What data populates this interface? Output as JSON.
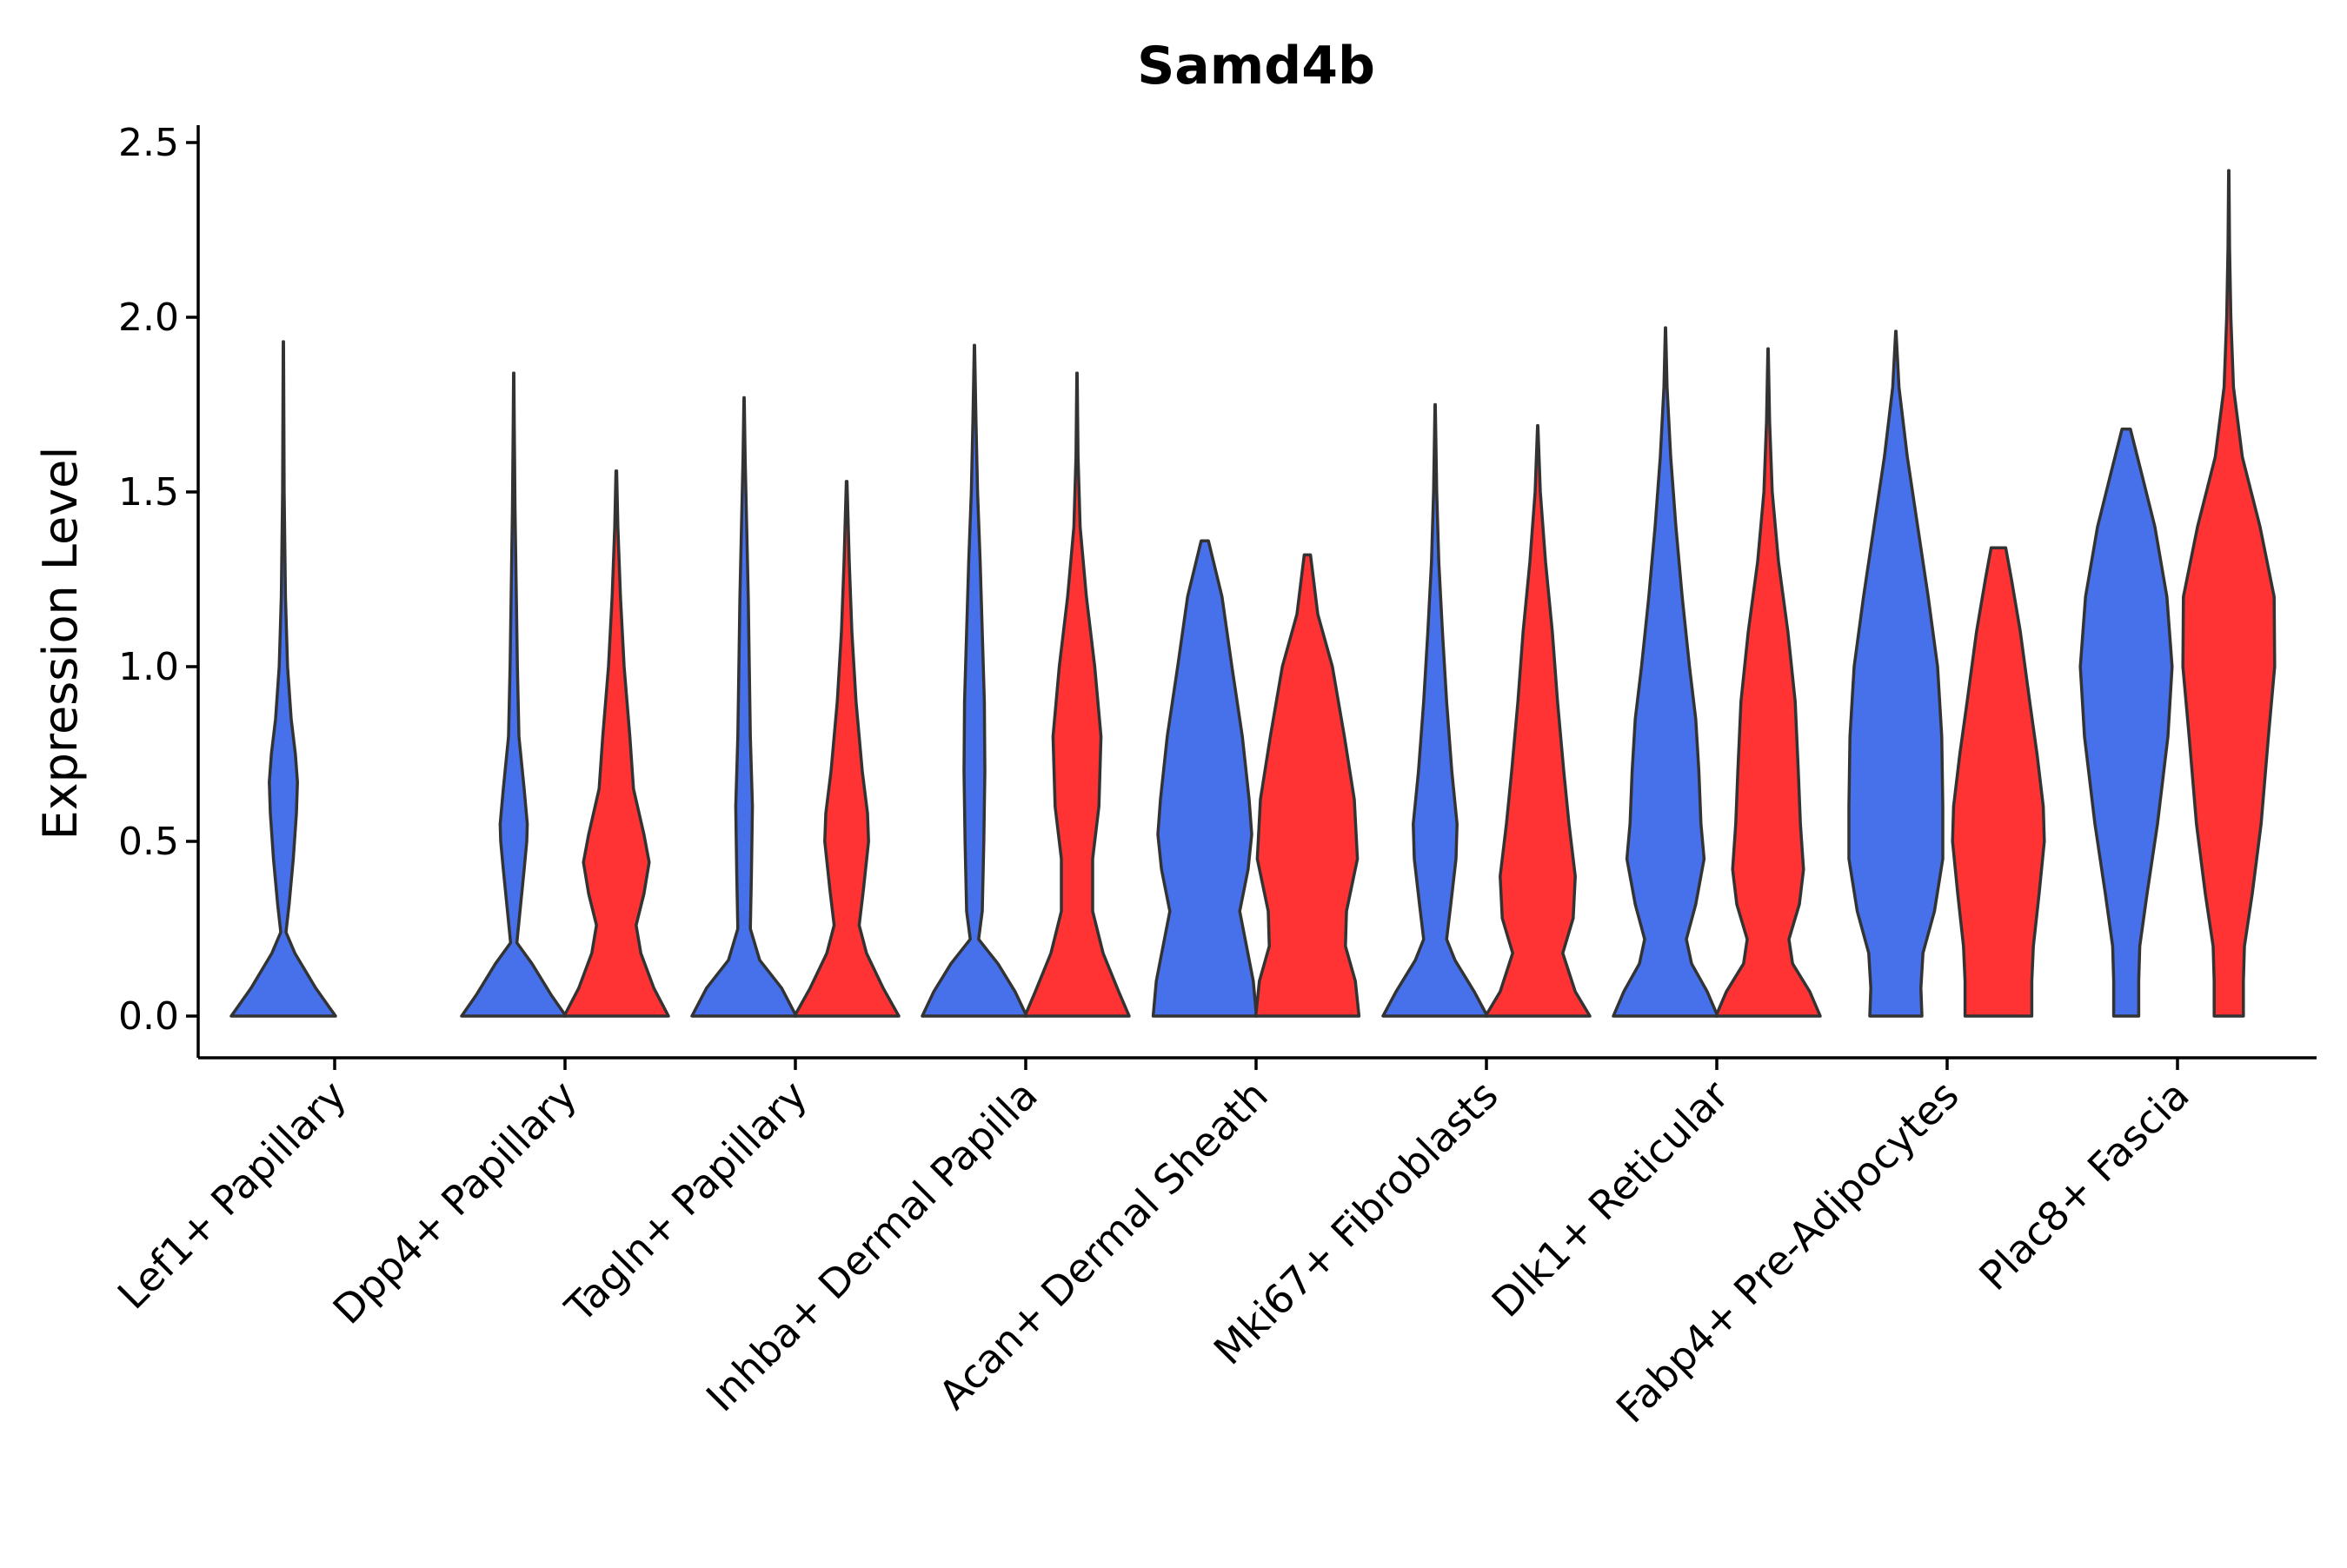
{
  "chart_data": {
    "type": "split-violin",
    "title": "Samd4b",
    "xlabel": "",
    "ylabel": "Expression Level",
    "ylim": [
      -0.12,
      2.55
    ],
    "yticks": [
      0.0,
      0.5,
      1.0,
      1.5,
      2.0,
      2.5
    ],
    "ytick_labels": [
      "0.0",
      "0.5",
      "1.0",
      "1.5",
      "2.0",
      "2.5"
    ],
    "grid": false,
    "legend": "none",
    "categories": [
      "Lef1+ Papillary",
      "Dpp4+ Papillary",
      "Tagln+ Papillary",
      "Inhba+ Dermal Papilla",
      "Acan+ Dermal Sheath",
      "Mki67+ Fibroblasts",
      "Dlk1+ Reticular",
      "Fabp4+ Pre-Adipocytes",
      "Plac8+ Fascia"
    ],
    "groups": [
      {
        "name": "group-blue",
        "color": "#4770EB"
      },
      {
        "name": "group-red",
        "color": "#FF3333"
      }
    ],
    "violins": [
      {
        "category": 0,
        "group": 0,
        "max": 1.93,
        "profile": [
          [
            0.0,
            1.0
          ],
          [
            0.08,
            0.62
          ],
          [
            0.18,
            0.22
          ],
          [
            0.24,
            0.05
          ],
          [
            0.32,
            0.11
          ],
          [
            0.45,
            0.19
          ],
          [
            0.58,
            0.25
          ],
          [
            0.67,
            0.27
          ],
          [
            0.75,
            0.23
          ],
          [
            0.85,
            0.15
          ],
          [
            1.0,
            0.08
          ],
          [
            1.2,
            0.04
          ],
          [
            1.5,
            0.015
          ],
          [
            1.75,
            0.008
          ],
          [
            1.93,
            0.004
          ]
        ]
      },
      {
        "category": 1,
        "group": 0,
        "max": 1.84,
        "profile": [
          [
            0.0,
            1.0
          ],
          [
            0.06,
            0.72
          ],
          [
            0.15,
            0.35
          ],
          [
            0.21,
            0.06
          ],
          [
            0.3,
            0.12
          ],
          [
            0.42,
            0.2
          ],
          [
            0.5,
            0.25
          ],
          [
            0.55,
            0.26
          ],
          [
            0.65,
            0.2
          ],
          [
            0.8,
            0.1
          ],
          [
            1.0,
            0.07
          ],
          [
            1.2,
            0.05
          ],
          [
            1.45,
            0.025
          ],
          [
            1.7,
            0.01
          ],
          [
            1.84,
            0.004
          ]
        ]
      },
      {
        "category": 1,
        "group": 1,
        "max": 1.56,
        "profile": [
          [
            0.0,
            1.0
          ],
          [
            0.08,
            0.72
          ],
          [
            0.18,
            0.47
          ],
          [
            0.26,
            0.38
          ],
          [
            0.35,
            0.53
          ],
          [
            0.44,
            0.63
          ],
          [
            0.52,
            0.53
          ],
          [
            0.65,
            0.33
          ],
          [
            0.8,
            0.26
          ],
          [
            1.0,
            0.15
          ],
          [
            1.2,
            0.08
          ],
          [
            1.4,
            0.03
          ],
          [
            1.56,
            0.006
          ]
        ]
      },
      {
        "category": 2,
        "group": 0,
        "max": 1.77,
        "profile": [
          [
            0.0,
            1.0
          ],
          [
            0.08,
            0.72
          ],
          [
            0.16,
            0.3
          ],
          [
            0.25,
            0.12
          ],
          [
            0.4,
            0.14
          ],
          [
            0.6,
            0.16
          ],
          [
            0.8,
            0.12
          ],
          [
            1.0,
            0.1
          ],
          [
            1.2,
            0.08
          ],
          [
            1.4,
            0.05
          ],
          [
            1.6,
            0.02
          ],
          [
            1.77,
            0.004
          ]
        ]
      },
      {
        "category": 2,
        "group": 1,
        "max": 1.53,
        "profile": [
          [
            0.0,
            1.0
          ],
          [
            0.08,
            0.7
          ],
          [
            0.18,
            0.38
          ],
          [
            0.26,
            0.24
          ],
          [
            0.36,
            0.32
          ],
          [
            0.5,
            0.42
          ],
          [
            0.58,
            0.4
          ],
          [
            0.7,
            0.3
          ],
          [
            0.9,
            0.18
          ],
          [
            1.1,
            0.1
          ],
          [
            1.3,
            0.05
          ],
          [
            1.53,
            0.006
          ]
        ]
      },
      {
        "category": 3,
        "group": 0,
        "max": 1.92,
        "profile": [
          [
            0.0,
            1.0
          ],
          [
            0.07,
            0.78
          ],
          [
            0.15,
            0.45
          ],
          [
            0.22,
            0.08
          ],
          [
            0.3,
            0.15
          ],
          [
            0.5,
            0.18
          ],
          [
            0.7,
            0.2
          ],
          [
            0.9,
            0.19
          ],
          [
            1.1,
            0.15
          ],
          [
            1.3,
            0.11
          ],
          [
            1.5,
            0.06
          ],
          [
            1.7,
            0.03
          ],
          [
            1.92,
            0.004
          ]
        ]
      },
      {
        "category": 3,
        "group": 1,
        "max": 1.84,
        "profile": [
          [
            0.0,
            1.0
          ],
          [
            0.07,
            0.8
          ],
          [
            0.18,
            0.5
          ],
          [
            0.3,
            0.3
          ],
          [
            0.45,
            0.3
          ],
          [
            0.6,
            0.42
          ],
          [
            0.8,
            0.46
          ],
          [
            1.0,
            0.34
          ],
          [
            1.2,
            0.18
          ],
          [
            1.4,
            0.06
          ],
          [
            1.6,
            0.02
          ],
          [
            1.84,
            0.004
          ]
        ]
      },
      {
        "category": 4,
        "group": 0,
        "max": 1.36,
        "profile": [
          [
            0.0,
            0.99
          ],
          [
            0.1,
            0.93
          ],
          [
            0.2,
            0.8
          ],
          [
            0.3,
            0.67
          ],
          [
            0.42,
            0.83
          ],
          [
            0.52,
            0.9
          ],
          [
            0.62,
            0.85
          ],
          [
            0.8,
            0.72
          ],
          [
            1.0,
            0.52
          ],
          [
            1.2,
            0.33
          ],
          [
            1.36,
            0.07
          ]
        ]
      },
      {
        "category": 4,
        "group": 1,
        "max": 1.32,
        "profile": [
          [
            0.0,
            0.99
          ],
          [
            0.1,
            0.92
          ],
          [
            0.2,
            0.73
          ],
          [
            0.3,
            0.75
          ],
          [
            0.45,
            0.96
          ],
          [
            0.62,
            0.9
          ],
          [
            0.8,
            0.71
          ],
          [
            1.0,
            0.48
          ],
          [
            1.15,
            0.2
          ],
          [
            1.32,
            0.06
          ]
        ]
      },
      {
        "category": 4,
        "group": 1,
        "max": 1.32,
        "profile": []
      }
    ]
  }
}
